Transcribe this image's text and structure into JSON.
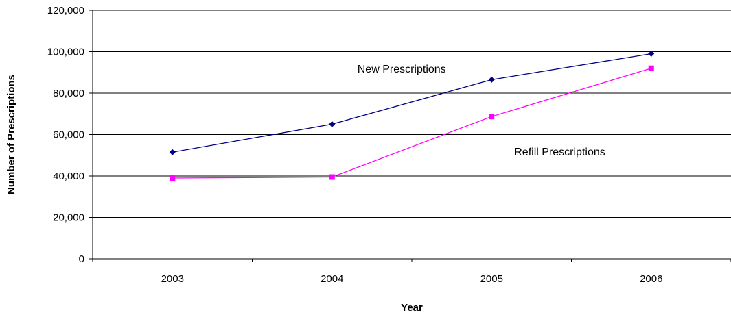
{
  "chart_data": {
    "type": "line",
    "categories": [
      "2003",
      "2004",
      "2005",
      "2006"
    ],
    "series": [
      {
        "name": "New Prescriptions",
        "values": [
          51500,
          65000,
          86500,
          99000
        ],
        "color": "#000080",
        "marker": "diamond"
      },
      {
        "name": "Refill Prescriptions",
        "values": [
          39000,
          39500,
          68700,
          92000
        ],
        "color": "#ff00ff",
        "marker": "square"
      }
    ],
    "title": "",
    "xlabel": "Year",
    "ylabel": "Number of Prescriptions",
    "ylim": [
      0,
      120000
    ],
    "yticks": [
      0,
      20000,
      40000,
      60000,
      80000,
      100000,
      120000
    ],
    "ytick_labels": [
      "0",
      "20,000",
      "40,000",
      "60,000",
      "80,000",
      "100,000",
      "120,000"
    ],
    "grid": "horizontal",
    "legend": "none",
    "annotations": [
      {
        "text": "New Prescriptions",
        "series": 0
      },
      {
        "text": "Refill Prescriptions",
        "series": 1
      }
    ]
  }
}
